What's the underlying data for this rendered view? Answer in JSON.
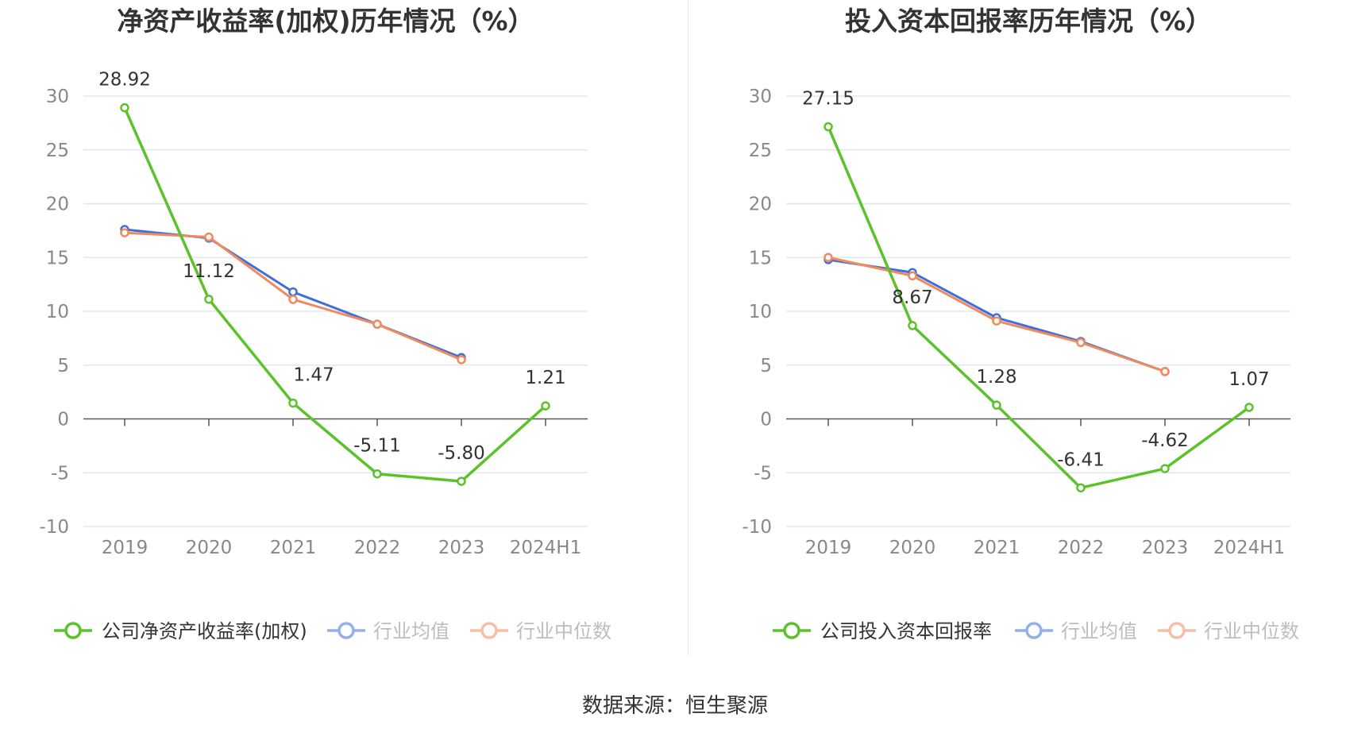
{
  "colors": {
    "company": "#5cc22a",
    "average": "#3f6fdc",
    "median": "#f08a5d",
    "grid": "#e3e6ef",
    "axis": "#555555",
    "tick_text": "#888888",
    "title_text": "#333333"
  },
  "source_text": "数据来源：恒生聚源",
  "chart_data": [
    {
      "type": "line",
      "title": "净资产收益率(加权)历年情况（%）",
      "categories": [
        "2019",
        "2020",
        "2021",
        "2022",
        "2023",
        "2024H1"
      ],
      "ylim": [
        -10,
        30
      ],
      "yticks": [
        30,
        25,
        20,
        15,
        10,
        5,
        0,
        -5,
        -10
      ],
      "ytick_labels": [
        "30",
        "25",
        "20",
        "15",
        "10",
        "5",
        "0",
        "-5",
        "-10"
      ],
      "grid": true,
      "legend_position": "bottom",
      "series": [
        {
          "key": "company",
          "name": "公司净资产收益率(加权)",
          "values": [
            28.92,
            11.12,
            1.47,
            -5.11,
            -5.8,
            1.21
          ],
          "labels": [
            "28.92",
            "11.12",
            "1.47",
            "-5.11",
            "-5.80",
            "1.21"
          ]
        },
        {
          "key": "average",
          "name": "行业均值",
          "values": [
            17.6,
            16.8,
            11.8,
            8.8,
            5.7,
            null
          ]
        },
        {
          "key": "median",
          "name": "行业中位数",
          "values": [
            17.3,
            16.9,
            11.1,
            8.8,
            5.5,
            null
          ]
        }
      ]
    },
    {
      "type": "line",
      "title": "投入资本回报率历年情况（%）",
      "categories": [
        "2019",
        "2020",
        "2021",
        "2022",
        "2023",
        "2024H1"
      ],
      "ylim": [
        -10,
        30
      ],
      "yticks": [
        30,
        25,
        20,
        15,
        10,
        5,
        0,
        -5,
        -10
      ],
      "ytick_labels": [
        "30",
        "25",
        "20",
        "15",
        "10",
        "5",
        "0",
        "-5",
        "-10"
      ],
      "grid": true,
      "legend_position": "bottom",
      "series": [
        {
          "key": "company",
          "name": "公司投入资本回报率",
          "values": [
            27.15,
            8.67,
            1.28,
            -6.41,
            -4.62,
            1.07
          ],
          "labels": [
            "27.15",
            "8.67",
            "1.28",
            "-6.41",
            "-4.62",
            "1.07"
          ]
        },
        {
          "key": "average",
          "name": "行业均值",
          "values": [
            14.8,
            13.6,
            9.4,
            7.2,
            4.4,
            null
          ]
        },
        {
          "key": "median",
          "name": "行业中位数",
          "values": [
            15.0,
            13.3,
            9.1,
            7.1,
            4.4,
            null
          ]
        }
      ]
    }
  ]
}
